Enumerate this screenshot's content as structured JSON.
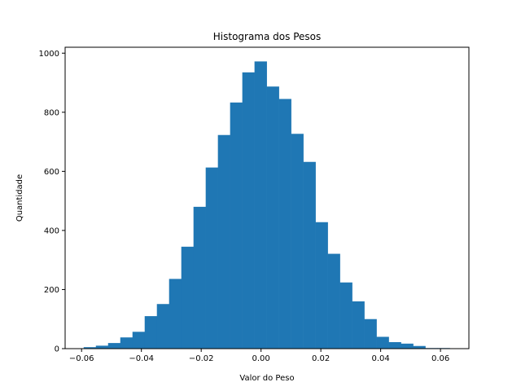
{
  "chart_data": {
    "type": "bar",
    "title": "Histograma dos Pesos",
    "xlabel": "Valor do Peso",
    "ylabel": "Quantidade",
    "xlim": [
      -0.0655,
      0.0695
    ],
    "ylim": [
      0,
      1020
    ],
    "x_ticks": [
      -0.06,
      -0.04,
      -0.02,
      0.0,
      0.02,
      0.04,
      0.06
    ],
    "x_tick_labels": [
      "−0.06",
      "−0.04",
      "−0.02",
      "0.00",
      "0.02",
      "0.04",
      "0.06"
    ],
    "y_ticks": [
      0,
      200,
      400,
      600,
      800,
      1000
    ],
    "y_tick_labels": [
      "0",
      "200",
      "400",
      "600",
      "800",
      "1000"
    ],
    "bin_start": -0.0593,
    "bin_width": 0.00408,
    "values": [
      5,
      10,
      19,
      38,
      57,
      110,
      151,
      236,
      345,
      480,
      613,
      723,
      833,
      935,
      972,
      887,
      845,
      727,
      632,
      428,
      321,
      224,
      160,
      100,
      40,
      22,
      17,
      9,
      2,
      2
    ],
    "bar_color": "#1f77b4",
    "grid": false,
    "legend": "none"
  }
}
